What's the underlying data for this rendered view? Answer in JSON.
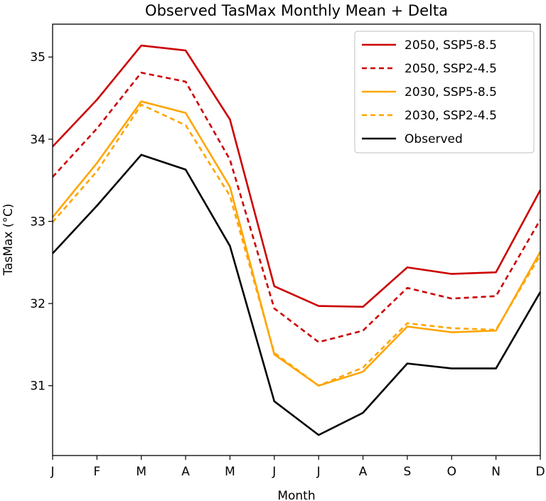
{
  "chart_data": {
    "type": "line",
    "title": "Observed TasMax Monthly Mean + Delta",
    "xlabel": "Month",
    "ylabel": "TasMax (°C)",
    "categories": [
      "J",
      "F",
      "M",
      "A",
      "M",
      "J",
      "J",
      "A",
      "S",
      "O",
      "N",
      "D"
    ],
    "ylim": [
      30.15,
      35.4
    ],
    "yticks": [
      31,
      32,
      33,
      34,
      35
    ],
    "grid": false,
    "legend_position": "top-right",
    "series": [
      {
        "name": "2050, SSP5-8.5",
        "color": "#cc0000",
        "style": "solid",
        "values": [
          33.91,
          34.48,
          35.14,
          35.08,
          34.24,
          32.21,
          31.97,
          31.96,
          32.44,
          32.36,
          32.38,
          33.38
        ]
      },
      {
        "name": "2050, SSP2-4.5",
        "color": "#cc0000",
        "style": "dashed",
        "values": [
          33.54,
          34.13,
          34.81,
          34.7,
          33.75,
          31.94,
          31.53,
          31.67,
          32.19,
          32.06,
          32.09,
          33.02
        ]
      },
      {
        "name": "2030, SSP5-8.5",
        "color": "#ffa500",
        "style": "solid",
        "values": [
          33.05,
          33.71,
          34.46,
          34.32,
          33.42,
          31.38,
          31.0,
          31.17,
          31.72,
          31.65,
          31.67,
          32.63
        ]
      },
      {
        "name": "2030, SSP2-4.5",
        "color": "#ffa500",
        "style": "dashed",
        "values": [
          32.99,
          33.61,
          34.42,
          34.17,
          33.31,
          31.4,
          31.0,
          31.22,
          31.76,
          31.7,
          31.68,
          32.59
        ]
      },
      {
        "name": "Observed",
        "color": "#000000",
        "style": "solid",
        "values": [
          32.61,
          33.19,
          33.81,
          33.63,
          32.7,
          30.81,
          30.4,
          30.67,
          31.27,
          31.21,
          31.21,
          32.14
        ]
      }
    ]
  }
}
